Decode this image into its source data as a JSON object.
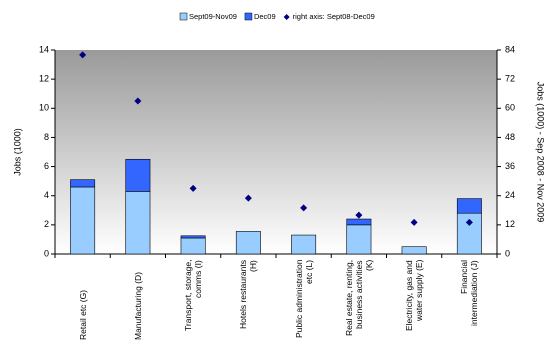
{
  "chart_data": {
    "type": "bar",
    "stacked": true,
    "ylabel": "Jobs (1000)",
    "y2label": "Jobs (1000) - Sep 2008 - Nov 2009",
    "categories": [
      "Retail etc (G)",
      "Manufacturing (D)",
      "Transport, storage, comms (I)",
      "Hotels restaurants (H)",
      "Public administration etc (L)",
      "Real estate, renting, business activities (K)",
      "Electricity, gas and water supply (E)",
      "Financial intermediation (J)"
    ],
    "series": [
      {
        "name": "Sept09-Nov09",
        "color": "#99ccff",
        "values": [
          4.6,
          4.3,
          1.1,
          1.55,
          1.3,
          2.0,
          0.5,
          2.8
        ]
      },
      {
        "name": "Dec09",
        "color": "#3366ff",
        "values": [
          0.5,
          2.2,
          0.15,
          0,
          0,
          0.4,
          0,
          1.0
        ]
      },
      {
        "name": "right axis: Sept08-Dec09",
        "color": "#000080",
        "type": "scatter",
        "axis": "y2",
        "values": [
          82,
          63,
          27,
          23,
          19,
          16,
          13,
          13
        ]
      }
    ],
    "ylim": [
      0,
      14
    ],
    "yticks": [
      0,
      2,
      4,
      6,
      8,
      10,
      12,
      14
    ],
    "y2lim": [
      0,
      84
    ],
    "y2ticks": [
      0,
      12,
      24,
      36,
      48,
      60,
      72,
      84
    ],
    "legend": "top"
  }
}
